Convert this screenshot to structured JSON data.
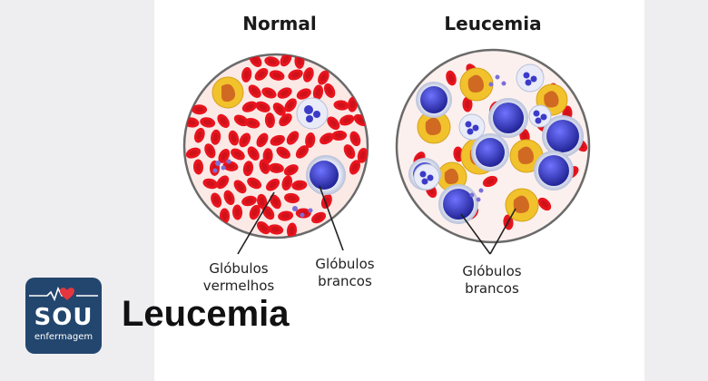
{
  "titles": {
    "normal": "Normal",
    "leukemia": "Leucemia"
  },
  "labels": {
    "red_cells": [
      "Glóbulos",
      "vermelhos"
    ],
    "white_cells_normal": [
      "Glóbulos",
      "brancos"
    ],
    "white_cells_leukemia": [
      "Glóbulos",
      "brancos"
    ]
  },
  "brand": {
    "logo_main": "SOU",
    "logo_sub": "enfermagem",
    "headline": "Leucemia"
  },
  "colors": {
    "red_cell": "#e8141e",
    "red_cell_dark": "#b90e16",
    "white_cell": "#2d2fc0",
    "granulocyte": "#f2c22c",
    "granulocyte_nucleus": "#d06a22",
    "platelet": "#7b6fd6",
    "brand": "#23466e"
  },
  "icons": [
    "heart-pulse-icon"
  ]
}
